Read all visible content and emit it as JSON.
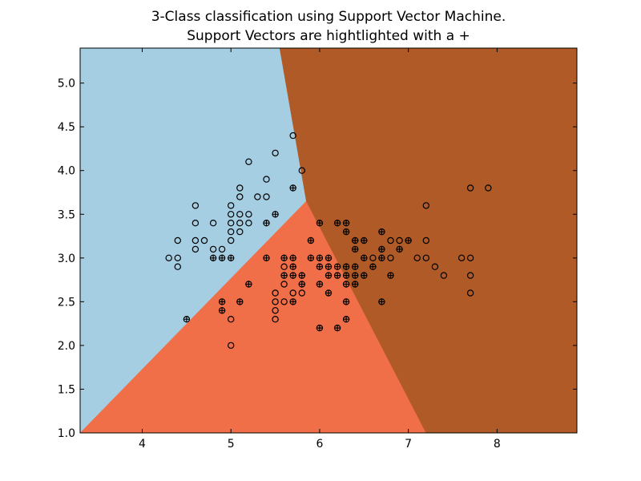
{
  "chart_data": {
    "type": "scatter",
    "title": "3-Class classification using Support Vector Machine.",
    "subtitle": "Support Vectors are hightlighted with a +",
    "xlabel": "",
    "ylabel": "",
    "xlim": [
      3.3,
      8.9
    ],
    "ylim": [
      1.0,
      5.4
    ],
    "xticks": [
      4,
      5,
      6,
      7,
      8
    ],
    "yticks": [
      1.0,
      1.5,
      2.0,
      2.5,
      3.0,
      3.5,
      4.0,
      4.5,
      5.0
    ],
    "grid": false,
    "colors": {
      "region_class_0": "#a6cee3",
      "region_class_1": "#f16f48",
      "region_class_2": "#b05a28",
      "marker_edge": "#000000"
    },
    "regions": [
      {
        "class": "class_0",
        "polygon": [
          [
            3.3,
            1.0
          ],
          [
            3.3,
            5.4
          ],
          [
            5.55,
            5.4
          ],
          [
            5.85,
            3.65
          ]
        ]
      },
      {
        "class": "class_1",
        "polygon": [
          [
            3.3,
            1.0
          ],
          [
            5.85,
            3.65
          ],
          [
            7.2,
            1.0
          ]
        ]
      },
      {
        "class": "class_2",
        "polygon": [
          [
            5.85,
            3.65
          ],
          [
            5.55,
            5.4
          ],
          [
            8.9,
            5.4
          ],
          [
            8.9,
            1.0
          ],
          [
            7.2,
            1.0
          ]
        ]
      }
    ],
    "points": [
      {
        "x": 4.3,
        "y": 3.0,
        "sv": false
      },
      {
        "x": 4.4,
        "y": 3.0,
        "sv": false
      },
      {
        "x": 4.4,
        "y": 2.9,
        "sv": false
      },
      {
        "x": 4.4,
        "y": 3.2,
        "sv": false
      },
      {
        "x": 4.5,
        "y": 2.3,
        "sv": true
      },
      {
        "x": 4.6,
        "y": 3.6,
        "sv": false
      },
      {
        "x": 4.6,
        "y": 3.4,
        "sv": false
      },
      {
        "x": 4.6,
        "y": 3.2,
        "sv": false
      },
      {
        "x": 4.6,
        "y": 3.1,
        "sv": false
      },
      {
        "x": 4.7,
        "y": 3.2,
        "sv": false
      },
      {
        "x": 4.8,
        "y": 3.4,
        "sv": false
      },
      {
        "x": 4.8,
        "y": 3.1,
        "sv": false
      },
      {
        "x": 4.8,
        "y": 3.0,
        "sv": true
      },
      {
        "x": 4.9,
        "y": 3.1,
        "sv": false
      },
      {
        "x": 4.9,
        "y": 3.0,
        "sv": true
      },
      {
        "x": 4.9,
        "y": 2.5,
        "sv": true
      },
      {
        "x": 4.9,
        "y": 2.4,
        "sv": true
      },
      {
        "x": 5.0,
        "y": 3.6,
        "sv": false
      },
      {
        "x": 5.0,
        "y": 3.5,
        "sv": false
      },
      {
        "x": 5.0,
        "y": 3.4,
        "sv": false
      },
      {
        "x": 5.0,
        "y": 3.3,
        "sv": false
      },
      {
        "x": 5.0,
        "y": 3.2,
        "sv": false
      },
      {
        "x": 5.0,
        "y": 3.0,
        "sv": true
      },
      {
        "x": 5.0,
        "y": 2.3,
        "sv": false
      },
      {
        "x": 5.0,
        "y": 2.0,
        "sv": false
      },
      {
        "x": 5.1,
        "y": 3.8,
        "sv": false
      },
      {
        "x": 5.1,
        "y": 3.7,
        "sv": false
      },
      {
        "x": 5.1,
        "y": 3.5,
        "sv": false
      },
      {
        "x": 5.1,
        "y": 3.4,
        "sv": false
      },
      {
        "x": 5.1,
        "y": 3.3,
        "sv": false
      },
      {
        "x": 5.1,
        "y": 2.5,
        "sv": true
      },
      {
        "x": 5.2,
        "y": 4.1,
        "sv": false
      },
      {
        "x": 5.2,
        "y": 3.5,
        "sv": false
      },
      {
        "x": 5.2,
        "y": 3.4,
        "sv": false
      },
      {
        "x": 5.2,
        "y": 2.7,
        "sv": true
      },
      {
        "x": 5.3,
        "y": 3.7,
        "sv": false
      },
      {
        "x": 5.4,
        "y": 3.9,
        "sv": false
      },
      {
        "x": 5.4,
        "y": 3.7,
        "sv": false
      },
      {
        "x": 5.4,
        "y": 3.4,
        "sv": true
      },
      {
        "x": 5.4,
        "y": 3.0,
        "sv": true
      },
      {
        "x": 5.5,
        "y": 4.2,
        "sv": false
      },
      {
        "x": 5.5,
        "y": 3.5,
        "sv": true
      },
      {
        "x": 5.5,
        "y": 2.6,
        "sv": false
      },
      {
        "x": 5.5,
        "y": 2.5,
        "sv": false
      },
      {
        "x": 5.5,
        "y": 2.4,
        "sv": false
      },
      {
        "x": 5.5,
        "y": 2.3,
        "sv": false
      },
      {
        "x": 5.6,
        "y": 3.0,
        "sv": true
      },
      {
        "x": 5.6,
        "y": 2.9,
        "sv": false
      },
      {
        "x": 5.6,
        "y": 2.8,
        "sv": true
      },
      {
        "x": 5.6,
        "y": 2.7,
        "sv": false
      },
      {
        "x": 5.6,
        "y": 2.5,
        "sv": false
      },
      {
        "x": 5.7,
        "y": 4.4,
        "sv": false
      },
      {
        "x": 5.7,
        "y": 3.8,
        "sv": true
      },
      {
        "x": 5.7,
        "y": 3.0,
        "sv": true
      },
      {
        "x": 5.7,
        "y": 2.9,
        "sv": true
      },
      {
        "x": 5.7,
        "y": 2.8,
        "sv": true
      },
      {
        "x": 5.7,
        "y": 2.6,
        "sv": false
      },
      {
        "x": 5.7,
        "y": 2.5,
        "sv": true
      },
      {
        "x": 5.8,
        "y": 4.0,
        "sv": false
      },
      {
        "x": 5.8,
        "y": 2.8,
        "sv": true
      },
      {
        "x": 5.8,
        "y": 2.7,
        "sv": true
      },
      {
        "x": 5.8,
        "y": 2.6,
        "sv": false
      },
      {
        "x": 5.9,
        "y": 3.2,
        "sv": true
      },
      {
        "x": 5.9,
        "y": 3.0,
        "sv": true
      },
      {
        "x": 6.0,
        "y": 3.4,
        "sv": true
      },
      {
        "x": 6.0,
        "y": 3.0,
        "sv": true
      },
      {
        "x": 6.0,
        "y": 2.9,
        "sv": true
      },
      {
        "x": 6.0,
        "y": 2.7,
        "sv": true
      },
      {
        "x": 6.0,
        "y": 2.2,
        "sv": true
      },
      {
        "x": 6.1,
        "y": 3.0,
        "sv": true
      },
      {
        "x": 6.1,
        "y": 2.9,
        "sv": true
      },
      {
        "x": 6.1,
        "y": 2.8,
        "sv": true
      },
      {
        "x": 6.1,
        "y": 2.6,
        "sv": true
      },
      {
        "x": 6.2,
        "y": 3.4,
        "sv": true
      },
      {
        "x": 6.2,
        "y": 2.9,
        "sv": true
      },
      {
        "x": 6.2,
        "y": 2.8,
        "sv": true
      },
      {
        "x": 6.2,
        "y": 2.2,
        "sv": true
      },
      {
        "x": 6.3,
        "y": 3.4,
        "sv": true
      },
      {
        "x": 6.3,
        "y": 3.3,
        "sv": true
      },
      {
        "x": 6.3,
        "y": 2.9,
        "sv": true
      },
      {
        "x": 6.3,
        "y": 2.8,
        "sv": true
      },
      {
        "x": 6.3,
        "y": 2.7,
        "sv": true
      },
      {
        "x": 6.3,
        "y": 2.5,
        "sv": true
      },
      {
        "x": 6.3,
        "y": 2.3,
        "sv": true
      },
      {
        "x": 6.4,
        "y": 3.2,
        "sv": true
      },
      {
        "x": 6.4,
        "y": 3.1,
        "sv": true
      },
      {
        "x": 6.4,
        "y": 2.9,
        "sv": true
      },
      {
        "x": 6.4,
        "y": 2.8,
        "sv": true
      },
      {
        "x": 6.4,
        "y": 2.7,
        "sv": true
      },
      {
        "x": 6.5,
        "y": 3.2,
        "sv": true
      },
      {
        "x": 6.5,
        "y": 3.0,
        "sv": true
      },
      {
        "x": 6.5,
        "y": 2.8,
        "sv": true
      },
      {
        "x": 6.6,
        "y": 3.0,
        "sv": false
      },
      {
        "x": 6.6,
        "y": 2.9,
        "sv": true
      },
      {
        "x": 6.7,
        "y": 3.3,
        "sv": true
      },
      {
        "x": 6.7,
        "y": 3.1,
        "sv": true
      },
      {
        "x": 6.7,
        "y": 3.0,
        "sv": true
      },
      {
        "x": 6.7,
        "y": 2.5,
        "sv": true
      },
      {
        "x": 6.8,
        "y": 3.2,
        "sv": false
      },
      {
        "x": 6.8,
        "y": 3.0,
        "sv": false
      },
      {
        "x": 6.8,
        "y": 2.8,
        "sv": true
      },
      {
        "x": 6.9,
        "y": 3.2,
        "sv": false
      },
      {
        "x": 6.9,
        "y": 3.1,
        "sv": true
      },
      {
        "x": 7.0,
        "y": 3.2,
        "sv": true
      },
      {
        "x": 7.1,
        "y": 3.0,
        "sv": false
      },
      {
        "x": 7.2,
        "y": 3.6,
        "sv": false
      },
      {
        "x": 7.2,
        "y": 3.2,
        "sv": false
      },
      {
        "x": 7.2,
        "y": 3.0,
        "sv": false
      },
      {
        "x": 7.3,
        "y": 2.9,
        "sv": false
      },
      {
        "x": 7.4,
        "y": 2.8,
        "sv": false
      },
      {
        "x": 7.6,
        "y": 3.0,
        "sv": false
      },
      {
        "x": 7.7,
        "y": 3.8,
        "sv": false
      },
      {
        "x": 7.7,
        "y": 3.0,
        "sv": false
      },
      {
        "x": 7.7,
        "y": 2.8,
        "sv": false
      },
      {
        "x": 7.7,
        "y": 2.6,
        "sv": false
      },
      {
        "x": 7.9,
        "y": 3.8,
        "sv": false
      }
    ]
  }
}
